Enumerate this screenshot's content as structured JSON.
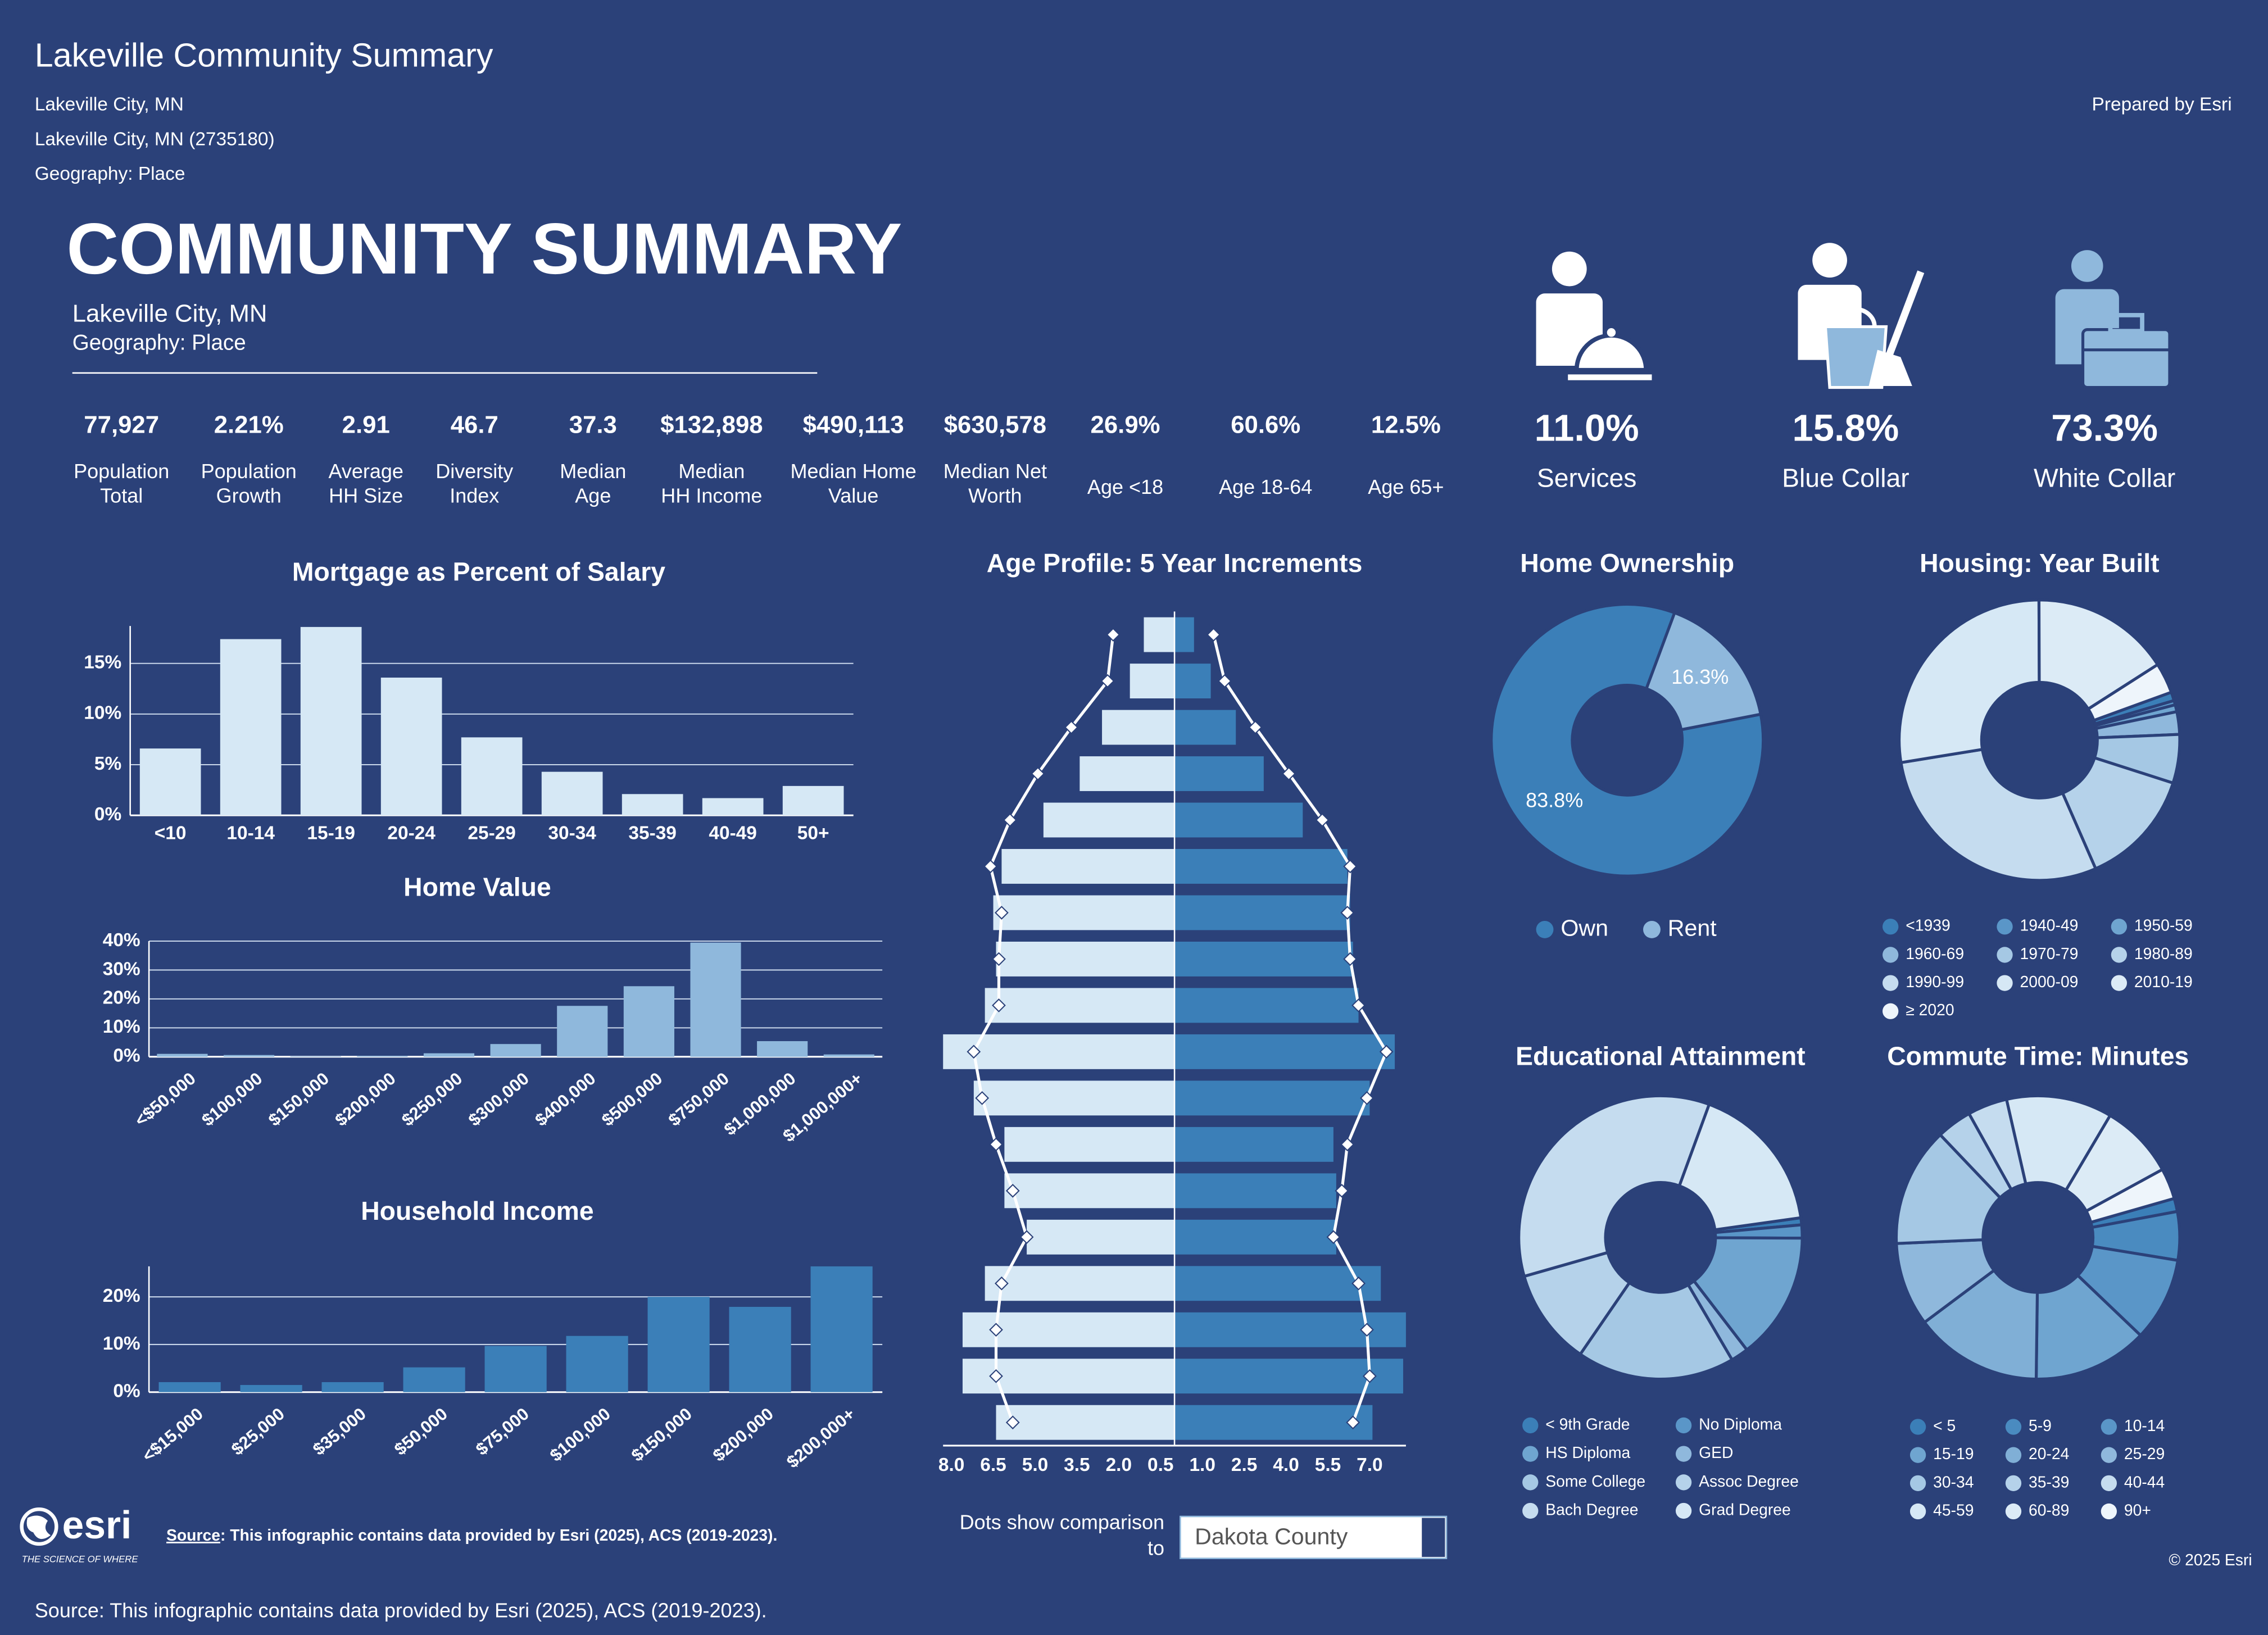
{
  "header": {
    "title": "Lakeville Community Summary",
    "lines": [
      "Lakeville City, MN",
      "Lakeville City, MN (2735180)",
      "Geography: Place"
    ],
    "prepared_by": "Prepared by Esri",
    "heading": "COMMUNITY SUMMARY",
    "subtitle_lines": [
      "Lakeville City, MN",
      "Geography: Place"
    ]
  },
  "kpis": [
    {
      "value": "77,927",
      "label": [
        "Population",
        "Total"
      ]
    },
    {
      "value": "2.21%",
      "label": [
        "Population",
        "Growth"
      ]
    },
    {
      "value": "2.91",
      "label": [
        "Average",
        "HH Size"
      ]
    },
    {
      "value": "46.7",
      "label": [
        "Diversity",
        "Index"
      ]
    },
    {
      "value": "37.3",
      "label": [
        "Median",
        "Age"
      ]
    },
    {
      "value": "$132,898",
      "label": [
        "Median",
        "HH Income"
      ]
    },
    {
      "value": "$490,113",
      "label": [
        "Median Home",
        "Value"
      ]
    },
    {
      "value": "$630,578",
      "label": [
        "Median Net",
        "Worth"
      ]
    },
    {
      "value": "26.9%",
      "label": [
        "Age <18"
      ]
    },
    {
      "value": "60.6%",
      "label": [
        "Age 18-64"
      ]
    },
    {
      "value": "12.5%",
      "label": [
        "Age 65+"
      ]
    }
  ],
  "occupations": [
    {
      "value": "11.0%",
      "label": "Services"
    },
    {
      "value": "15.8%",
      "label": "Blue Collar"
    },
    {
      "value": "73.3%",
      "label": "White Collar"
    }
  ],
  "chart_data": [
    {
      "type": "bar",
      "title": "Mortgage as Percent of Salary",
      "categories": [
        "<10",
        "10-14",
        "15-19",
        "20-24",
        "25-29",
        "30-34",
        "35-39",
        "40-49",
        "50+"
      ],
      "values": [
        6.6,
        17.4,
        18.6,
        13.6,
        7.7,
        4.3,
        2.1,
        1.7,
        2.9
      ],
      "color": "#d6e8f5",
      "ylim": [
        0,
        18.7
      ],
      "yticks": [
        {
          "value": 0,
          "label": "0%"
        },
        {
          "value": 5,
          "label": "5%"
        },
        {
          "value": 10,
          "label": "10%"
        },
        {
          "value": 15,
          "label": "15%"
        }
      ],
      "grid": true,
      "rotate_labels": false
    },
    {
      "type": "bar",
      "title": "Home Value",
      "categories": [
        "<$50,000",
        "$100,000",
        "$150,000",
        "$200,000",
        "$250,000",
        "$300,000",
        "$400,000",
        "$500,000",
        "$750,000",
        "$1,000,000",
        "$1,000,000+"
      ],
      "values": [
        1.0,
        0.6,
        0.2,
        0.3,
        1.2,
        4.4,
        17.6,
        24.4,
        39.5,
        5.4,
        0.8
      ],
      "color": "#8fb8dc",
      "ylim": [
        0,
        40
      ],
      "yticks": [
        {
          "value": 0,
          "label": "0%"
        },
        {
          "value": 10,
          "label": "10%"
        },
        {
          "value": 20,
          "label": "20%"
        },
        {
          "value": 30,
          "label": "30%"
        },
        {
          "value": 40,
          "label": "40%"
        }
      ],
      "grid": true,
      "rotate_labels": true
    },
    {
      "type": "bar",
      "title": "Household Income",
      "categories": [
        "<$15,000",
        "$25,000",
        "$35,000",
        "$50,000",
        "$75,000",
        "$100,000",
        "$150,000",
        "$200,000",
        "$200,000+"
      ],
      "values": [
        2.1,
        1.5,
        2.1,
        5.2,
        9.7,
        11.8,
        20.0,
        17.9,
        26.4
      ],
      "color": "#3b7fb8",
      "ylim": [
        0,
        26.4
      ],
      "yticks": [
        {
          "value": 0,
          "label": "0%"
        },
        {
          "value": 10,
          "label": "10%"
        },
        {
          "value": 20,
          "label": "20%"
        }
      ],
      "grid": true,
      "rotate_labels": true
    },
    {
      "type": "pyramid",
      "title": "Age Profile: 5 Year Increments",
      "series": [
        {
          "side": "left",
          "color": "#d6e8f5",
          "values": [
            1.1,
            1.6,
            2.6,
            3.4,
            4.7,
            6.2,
            6.5,
            6.4,
            6.8,
            8.3,
            7.2,
            6.1,
            6.1,
            5.3,
            6.8,
            7.6,
            7.6,
            6.4
          ]
        },
        {
          "side": "right",
          "color": "#3b7fb8",
          "values": [
            0.7,
            1.3,
            2.2,
            3.2,
            4.6,
            6.2,
            6.3,
            6.4,
            6.6,
            7.9,
            7.0,
            5.7,
            5.8,
            5.8,
            7.4,
            8.3,
            8.2,
            7.1
          ]
        }
      ],
      "dots": [
        {
          "side": "left",
          "values": [
            2.2,
            2.4,
            3.7,
            4.9,
            5.9,
            6.6,
            6.2,
            6.3,
            6.3,
            7.2,
            6.9,
            6.4,
            5.8,
            5.3,
            6.2,
            6.4,
            6.4,
            5.8
          ]
        },
        {
          "side": "right",
          "values": [
            1.4,
            1.8,
            2.9,
            4.1,
            5.3,
            6.3,
            6.2,
            6.3,
            6.6,
            7.6,
            6.9,
            6.2,
            6.0,
            5.7,
            6.6,
            6.9,
            7.0,
            6.4
          ]
        }
      ],
      "dot_color": "#ffffff",
      "xlim": [
        0,
        8.3
      ],
      "xticks_left": [
        {
          "value": 8,
          "label": "8.0"
        },
        6.5,
        {
          "value": 5,
          "label": "5.0"
        },
        3.5,
        {
          "value": 2,
          "label": "2.0"
        },
        0.5
      ],
      "xticks_right": [
        {
          "value": 1,
          "label": "1.0"
        },
        2.5,
        {
          "value": 4,
          "label": "4.0"
        },
        5.5,
        {
          "value": 7,
          "label": "7.0"
        }
      ]
    },
    {
      "type": "donut",
      "title": "Home Ownership",
      "categories": [
        "Own",
        "Rent"
      ],
      "values": [
        83.8,
        16.3
      ],
      "value_labels": [
        "83.8%",
        "16.3%"
      ],
      "colors": [
        "#3b7fb8",
        "#8fb8dc"
      ]
    },
    {
      "type": "donut",
      "title": "Housing: Year Built",
      "categories": [
        "<1939",
        "1940-49",
        "1950-59",
        "1960-69",
        "1970-79",
        "1980-89",
        "1990-99",
        "2000-09",
        "2010-19",
        "≥ 2020"
      ],
      "values": [
        1.0,
        0.5,
        0.8,
        2.6,
        5.6,
        13.5,
        29.0,
        27.5,
        16.0,
        3.5
      ],
      "colors": [
        "#3b7fb8",
        "#5a96c8",
        "#6fa5d0",
        "#8fb8dc",
        "#a5c8e4",
        "#b5d2ea",
        "#c5dcef",
        "#d6e8f5",
        "#dcebf6",
        "#eef5fb"
      ]
    },
    {
      "type": "donut",
      "title": "Educational Attainment",
      "categories": [
        "< 9th Grade",
        "No Diploma",
        "HS Diploma",
        "GED",
        "Some College",
        "Assoc Degree",
        "Bach Degree",
        "Grad Degree"
      ],
      "values": [
        0.8,
        1.5,
        14.5,
        2.0,
        18.0,
        11.0,
        35.0,
        17.2
      ],
      "colors": [
        "#3b7fb8",
        "#5a96c8",
        "#6fa5d0",
        "#8fb8dc",
        "#a5c8e4",
        "#b5d2ea",
        "#c5dcef",
        "#d6e8f5"
      ]
    },
    {
      "type": "donut",
      "title": "Commute Time: Minutes",
      "categories": [
        "< 5",
        "5-9",
        "10-14",
        "15-19",
        "20-24",
        "25-29",
        "30-34",
        "35-39",
        "40-44",
        "45-59",
        "60-89",
        "90+"
      ],
      "values": [
        1.5,
        5.5,
        9.5,
        13.0,
        14.5,
        9.5,
        13.5,
        4.0,
        4.5,
        12.0,
        8.5,
        3.5
      ],
      "colors": [
        "#3b7fb8",
        "#4a8bc0",
        "#5a96c8",
        "#6fa5d0",
        "#80afd6",
        "#8fb8dc",
        "#a5c8e4",
        "#b5d2ea",
        "#c5dcef",
        "#d6e8f5",
        "#dcebf6",
        "#eef5fb"
      ]
    }
  ],
  "comparison": {
    "label": [
      "Dots show comparison",
      "to"
    ],
    "selected": "Dakota County"
  },
  "logo": {
    "name": "esri",
    "tagline": "THE SCIENCE OF WHERE"
  },
  "source": {
    "prefix": "Source",
    "text": ": This infographic contains data provided by Esri (2025), ACS (2019-2023)."
  },
  "copyright": "© 2025 Esri",
  "footer": "Source: This infographic contains data provided by Esri (2025), ACS (2019-2023)."
}
